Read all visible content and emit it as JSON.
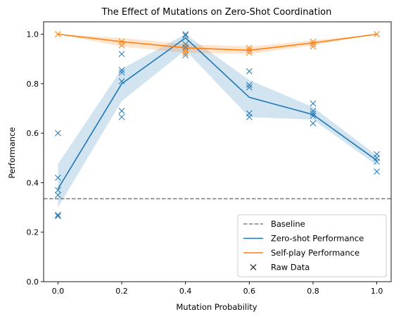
{
  "chart_data": {
    "type": "line",
    "title": "The Effect of Mutations on Zero-Shot Coordination",
    "xlabel": "Mutation Probability",
    "ylabel": "Performance",
    "x": [
      0.0,
      0.2,
      0.4,
      0.6,
      0.8,
      1.0
    ],
    "xticks": [
      "0.0",
      "0.2",
      "0.4",
      "0.6",
      "0.8",
      "1.0"
    ],
    "yticks": [
      "0.0",
      "0.2",
      "0.4",
      "0.6",
      "0.8",
      "1.0"
    ],
    "xlim": [
      -0.045,
      1.045
    ],
    "ylim": [
      0.0,
      1.05
    ],
    "baseline": {
      "name": "Baseline",
      "y": 0.335,
      "color": "#808080",
      "style": "dashed"
    },
    "series": [
      {
        "name": "Zero-shot Performance",
        "color": "#1f77b4",
        "values": [
          0.375,
          0.8,
          0.985,
          0.745,
          0.675,
          0.49
        ],
        "band_low": [
          0.3,
          0.73,
          0.935,
          0.665,
          0.655,
          0.47
        ],
        "band_high": [
          0.475,
          0.86,
          1.0,
          0.815,
          0.705,
          0.51
        ],
        "raw": [
          [
            0.6,
            0.42,
            0.37,
            0.35,
            0.27,
            0.265
          ],
          [
            0.92,
            0.855,
            0.845,
            0.81,
            0.69,
            0.665
          ],
          [
            1.0,
            0.995,
            0.96,
            0.945,
            0.925,
            0.915
          ],
          [
            0.85,
            0.795,
            0.785,
            0.68,
            0.665
          ],
          [
            0.72,
            0.69,
            0.68,
            0.67,
            0.64
          ],
          [
            0.515,
            0.5,
            0.485,
            0.445
          ]
        ]
      },
      {
        "name": "Self-play Performance",
        "color": "#ff7f0e",
        "values": [
          1.0,
          0.97,
          0.945,
          0.935,
          0.965,
          1.0
        ],
        "band_low": [
          1.0,
          0.95,
          0.925,
          0.92,
          0.955,
          1.0
        ],
        "band_high": [
          1.0,
          0.985,
          0.96,
          0.95,
          0.975,
          1.0
        ],
        "raw": [
          [
            1.0,
            1.0
          ],
          [
            0.97,
            0.955
          ],
          [
            0.95,
            0.935,
            0.925
          ],
          [
            0.945,
            0.935,
            0.925
          ],
          [
            0.97,
            0.96,
            0.95
          ],
          [
            1.0,
            1.0
          ]
        ]
      }
    ],
    "legend": {
      "placement": "lower-right",
      "entries": [
        {
          "label": "Baseline",
          "kind": "dashed",
          "color": "#808080"
        },
        {
          "label": "Zero-shot Performance",
          "kind": "line",
          "color": "#1f77b4"
        },
        {
          "label": "Self-play Performance",
          "kind": "line",
          "color": "#ff7f0e"
        },
        {
          "label": "Raw Data",
          "kind": "marker",
          "color": "#000000"
        }
      ]
    },
    "grid": false
  }
}
